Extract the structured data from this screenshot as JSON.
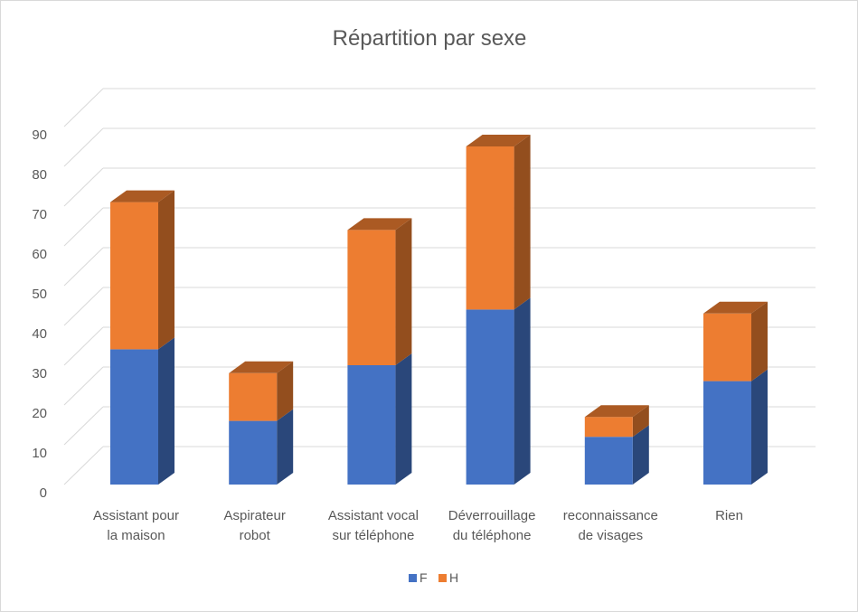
{
  "chart_data": {
    "type": "bar",
    "stacked": true,
    "style": "3d",
    "title": "Répartition par sexe",
    "categories": [
      [
        "Assistant pour",
        "la maison"
      ],
      [
        "Aspirateur",
        "robot"
      ],
      [
        "Assistant vocal",
        "sur téléphone"
      ],
      [
        "Déverrouillage",
        "du téléphone"
      ],
      [
        "reconnaissance",
        "de visages"
      ],
      [
        "Rien"
      ]
    ],
    "series": [
      {
        "name": "F",
        "values": [
          34,
          16,
          30,
          44,
          12,
          26
        ],
        "color": "#4472c4"
      },
      {
        "name": "H",
        "values": [
          37,
          12,
          34,
          41,
          5,
          17
        ],
        "color": "#ed7d31"
      }
    ],
    "ylim": [
      0,
      90
    ],
    "yticks": [
      0,
      10,
      20,
      30,
      40,
      50,
      60,
      70,
      80,
      90
    ],
    "grid": true,
    "legend": "bottom"
  }
}
